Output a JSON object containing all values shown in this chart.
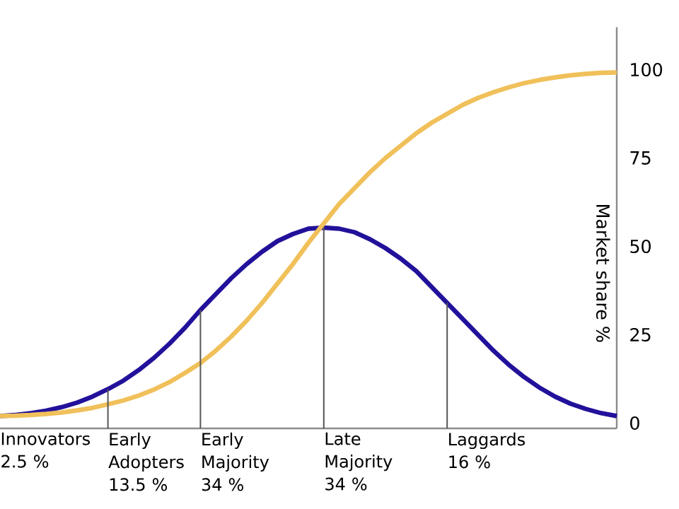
{
  "chart_data": {
    "type": "line",
    "ylabel": "Market share %",
    "categories": [
      null,
      null,
      null,
      null,
      null,
      null,
      null,
      null,
      null,
      null,
      null,
      null,
      null,
      null,
      null,
      null,
      null,
      null,
      null,
      null,
      null,
      null,
      null,
      null,
      null,
      null,
      null,
      null,
      null,
      null,
      null,
      null,
      null,
      null,
      null,
      null,
      null,
      null,
      null,
      null,
      null
    ],
    "series": [
      {
        "color": "#22119a",
        "values": [
          2,
          2.3,
          2.8,
          3.5,
          4.5,
          5.8,
          7.5,
          9.6,
          12,
          15,
          18.5,
          22.5,
          27,
          32,
          36.5,
          41,
          45,
          48.5,
          51.5,
          53.5,
          55,
          55.3,
          55,
          54,
          52,
          49.5,
          46.5,
          43,
          38.5,
          34,
          29.5,
          25,
          20.5,
          16.5,
          13,
          10,
          7.5,
          5.5,
          4,
          2.8,
          2
        ]
      },
      {
        "color": "#f0c05a",
        "values": [
          2,
          2.1,
          2.3,
          2.6,
          3,
          3.6,
          4.3,
          5.3,
          6.4,
          7.8,
          9.5,
          11.6,
          14.2,
          17,
          20.5,
          24.5,
          29,
          34,
          39.5,
          45,
          51,
          56.5,
          62,
          66.5,
          71,
          75,
          78.5,
          82,
          85,
          87.5,
          90,
          92,
          93.6,
          95,
          96.2,
          97.1,
          97.8,
          98.4,
          98.8,
          99.1,
          99.2
        ]
      }
    ],
    "ylim": [
      -1.5,
      112
    ],
    "yticks": [
      0,
      25,
      50,
      75,
      100
    ],
    "tick_labels": "y",
    "marker": "none",
    "line_style": "solid",
    "annotations": [
      "Innovators 2.5 %",
      "Early Adopters 13.5 %",
      "Early Majority 34 %",
      "Late Majority 34 %",
      "Laggards 16 %"
    ]
  }
}
